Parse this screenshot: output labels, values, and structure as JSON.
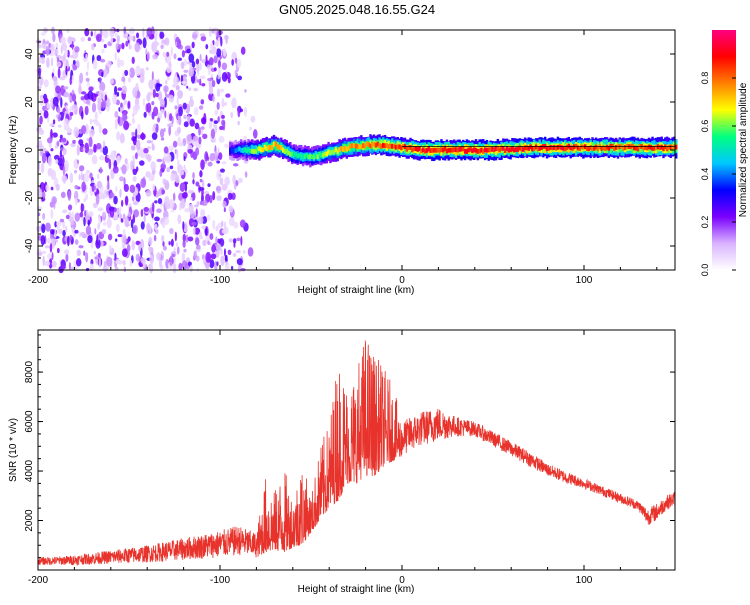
{
  "title": "GN05.2025.048.16.55.G24",
  "chart_data": [
    {
      "type": "heatmap",
      "xlabel": "Height of straight line (km)",
      "ylabel": "Frequency (Hz)",
      "xlim": [
        -200,
        150
      ],
      "ylim": [
        -50,
        50
      ],
      "xticks": [
        -200,
        -100,
        0,
        100
      ],
      "yticks": [
        -40,
        -20,
        0,
        20,
        40
      ],
      "colorbar": {
        "label": "Normalized spectral amplitude",
        "range": [
          0,
          1
        ],
        "ticks": [
          0.0,
          0.2,
          0.4,
          0.6,
          0.8
        ],
        "tick_labels": [
          "0.0",
          "0.2",
          "0.4",
          "0.6",
          "0.8"
        ],
        "colors": [
          "#ffffff",
          "#d9b3ff",
          "#7a00ff",
          "#0000ff",
          "#00c8ff",
          "#00ff80",
          "#ffff00",
          "#ff8000",
          "#ff0000",
          "#ff0080"
        ]
      },
      "noise_region": {
        "x": [
          -200,
          -80
        ],
        "level": [
          0.0,
          0.25
        ]
      },
      "ridge": {
        "x": [
          -95,
          -80,
          -70,
          -60,
          -50,
          -40,
          -30,
          -20,
          -10,
          0,
          10,
          30,
          50,
          70,
          90,
          110,
          130,
          150
        ],
        "frequency": [
          0,
          0,
          2,
          -2,
          -3,
          -1,
          1,
          2,
          2,
          1,
          0,
          0,
          0,
          1,
          1,
          1,
          1,
          1
        ],
        "amplitude": [
          0.35,
          0.7,
          0.8,
          0.6,
          0.6,
          0.7,
          0.8,
          0.85,
          0.9,
          0.9,
          0.95,
          0.95,
          0.95,
          0.95,
          0.95,
          0.9,
          0.9,
          0.9
        ]
      }
    },
    {
      "type": "line",
      "xlabel": "Height of straight line (km)",
      "ylabel": "SNR (10 * v/v)",
      "xlim": [
        -200,
        150
      ],
      "ylim": [
        0,
        9700
      ],
      "xticks": [
        -200,
        -100,
        0,
        100
      ],
      "yticks": [
        2000,
        4000,
        6000,
        8000
      ],
      "color": "#e8332c",
      "envelope": {
        "x": [
          -200,
          -180,
          -160,
          -140,
          -120,
          -100,
          -90,
          -80,
          -75,
          -70,
          -65,
          -60,
          -55,
          -50,
          -45,
          -40,
          -35,
          -30,
          -25,
          -20,
          -15,
          -10,
          -5,
          0,
          10,
          20,
          30,
          40,
          50,
          60,
          70,
          80,
          90,
          100,
          110,
          120,
          130,
          135,
          140,
          145,
          150
        ],
        "min": [
          200,
          200,
          250,
          300,
          400,
          500,
          600,
          500,
          700,
          800,
          700,
          900,
          1000,
          1500,
          2000,
          2500,
          2800,
          3500,
          3500,
          3800,
          3800,
          4200,
          4400,
          4600,
          5000,
          5200,
          5400,
          5400,
          5000,
          4600,
          4200,
          3800,
          3500,
          3300,
          3000,
          2700,
          2400,
          1800,
          2000,
          2400,
          2600
        ],
        "max": [
          500,
          600,
          800,
          1000,
          1300,
          1600,
          1800,
          1500,
          3800,
          3200,
          4200,
          3000,
          4500,
          3000,
          5000,
          6000,
          8800,
          7500,
          8200,
          9700,
          8800,
          8200,
          7500,
          6000,
          6400,
          6600,
          6200,
          6000,
          5600,
          5200,
          4800,
          4300,
          4000,
          3700,
          3400,
          3100,
          2800,
          2500,
          2700,
          3000,
          3200
        ]
      }
    }
  ]
}
